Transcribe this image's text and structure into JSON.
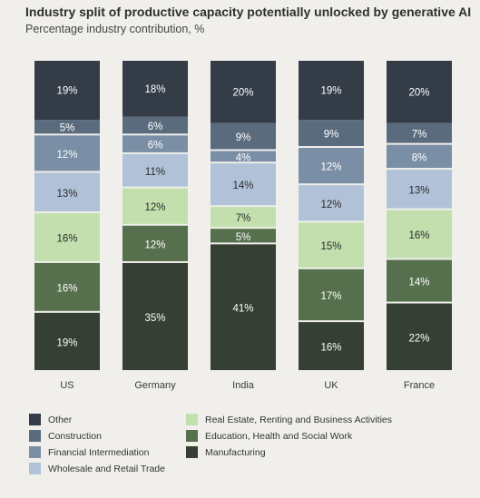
{
  "title": "Industry split of productive capacity potentially unlocked by generative AI",
  "subtitle": "Percentage industry contribution, %",
  "chart_data": {
    "type": "bar",
    "stacked": true,
    "categories": [
      "US",
      "Germany",
      "India",
      "UK",
      "France"
    ],
    "ylim": [
      0,
      100
    ],
    "grid": false,
    "legend_position": "bottom",
    "series": [
      {
        "name": "Manufacturing",
        "color": "#353f33",
        "label_color": "#ffffff",
        "values": [
          19,
          35,
          41,
          16,
          22
        ]
      },
      {
        "name": "Education, Health and Social Work",
        "color": "#56704e",
        "label_color": "#ffffff",
        "values": [
          16,
          12,
          5,
          17,
          14
        ]
      },
      {
        "name": "Real Estate, Renting and Business Activities",
        "color": "#c2dfad",
        "label_color": "#2b2b2b",
        "values": [
          16,
          12,
          7,
          15,
          16
        ]
      },
      {
        "name": "Wholesale and Retail Trade",
        "color": "#b1c2d8",
        "label_color": "#2b2b2b",
        "values": [
          13,
          11,
          14,
          12,
          13
        ]
      },
      {
        "name": "Financial Intermediation",
        "color": "#7a8ea6",
        "label_color": "#ffffff",
        "values": [
          12,
          6,
          4,
          12,
          8
        ]
      },
      {
        "name": "Construction",
        "color": "#5a6b7d",
        "label_color": "#ffffff",
        "values": [
          5,
          6,
          9,
          9,
          7
        ]
      },
      {
        "name": "Other",
        "color": "#343c48",
        "label_color": "#ffffff",
        "values": [
          19,
          18,
          20,
          19,
          20
        ]
      }
    ]
  },
  "legend": {
    "column1": [
      "Other",
      "Construction",
      "Financial Intermediation",
      "Wholesale and Retail Trade"
    ],
    "column2": [
      "Real Estate, Renting and Business Activities",
      "Education, Health and Social Work",
      "Manufacturing"
    ]
  }
}
